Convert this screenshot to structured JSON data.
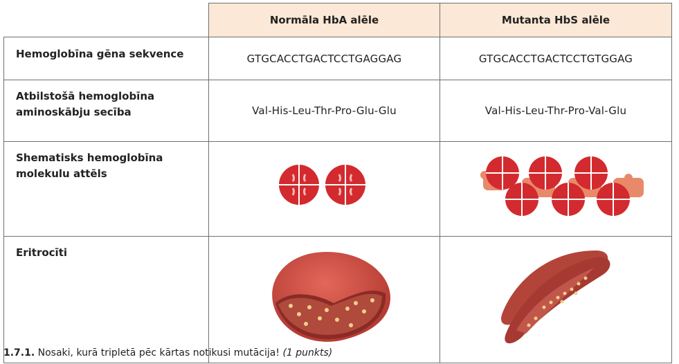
{
  "table": {
    "headers": [
      "Normāla HbA alēle",
      "Mutanta HbS alēle"
    ],
    "rows": [
      {
        "label": "Hemoglobīna gēna sekvence",
        "normal": "GTGCACCTGACTCCTGAGGAG",
        "mutant": "GTGCACCTGACTCCTGTGGAG"
      },
      {
        "label_line1": "Atbilstošā hemoglobīna",
        "label_line2": "aminoskābju secība",
        "normal": "Val-His-Leu-Thr-Pro-Glu-Glu",
        "mutant": "Val-His-Leu-Thr-Pro-Val-Glu"
      },
      {
        "label_line1": "Shematisks hemoglobīna",
        "label_line2": "molekulu attēls"
      },
      {
        "label": "Eritrocīti"
      }
    ]
  },
  "question": {
    "number": "1.7.1.",
    "text": " Nosaki, kurā tripletā pēc kārtas notikusi mutācija! ",
    "points": "(1 punkts)"
  },
  "colors": {
    "header_bg": "#fce8d6",
    "molecule_red": "#d32a2f",
    "linker_salmon": "#e88a6a",
    "cell_body": "#b3443a"
  }
}
